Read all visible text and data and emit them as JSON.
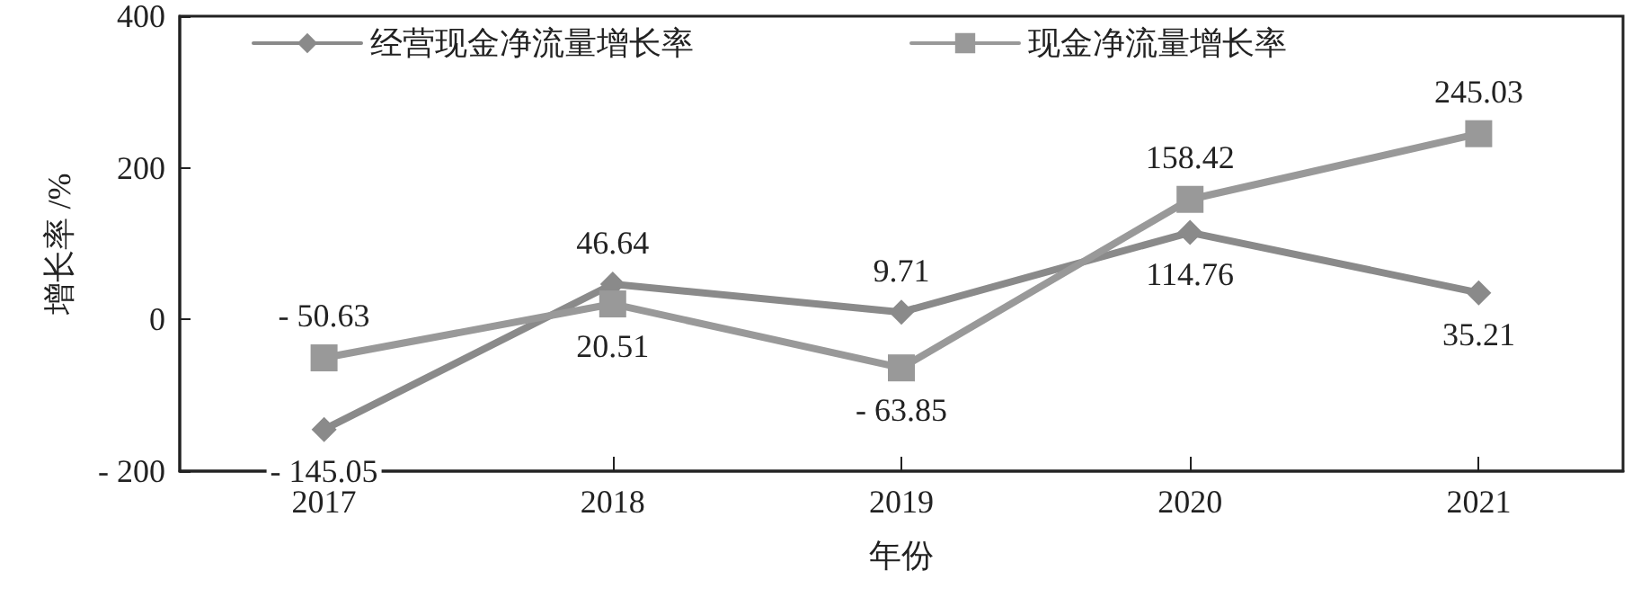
{
  "chart_data": {
    "type": "line",
    "xlabel": "年份",
    "ylabel": "增长率 /%",
    "categories": [
      "2017",
      "2018",
      "2019",
      "2020",
      "2021"
    ],
    "series": [
      {
        "name": "经营现金净流量增长率",
        "color": "#8a8a8a",
        "marker": "diamond",
        "values": [
          -145.05,
          46.64,
          9.71,
          114.76,
          35.21
        ],
        "value_labels": [
          "- 145.05",
          "46.64",
          "9.71",
          "114.76",
          "35.21"
        ]
      },
      {
        "name": "现金净流量增长率",
        "color": "#999999",
        "marker": "square",
        "values": [
          -50.63,
          20.51,
          -63.85,
          158.42,
          245.03
        ],
        "value_labels": [
          "- 50.63",
          "20.51",
          "- 63.85",
          "158.42",
          "245.03"
        ]
      }
    ],
    "ylim": [
      -200,
      400
    ],
    "yticks": [
      {
        "value": -200,
        "label": "- 200"
      },
      0,
      200,
      400
    ],
    "grid": false,
    "legend": "top left",
    "line_style": "solid"
  }
}
